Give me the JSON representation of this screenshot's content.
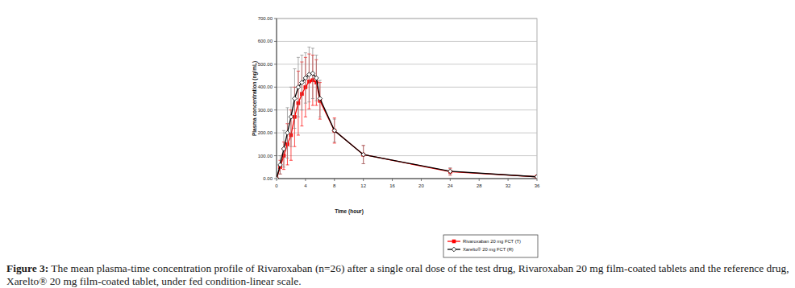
{
  "chart_data": {
    "type": "line",
    "y_label": "Plasma concentration (ng/mL)",
    "x_label": "Time (hour)",
    "x": [
      0,
      0.5,
      1,
      1.5,
      2,
      2.5,
      3,
      3.5,
      4,
      4.5,
      5,
      5.5,
      6,
      8,
      12,
      24,
      36
    ],
    "series": [
      {
        "name": "Rivaroxaban 20 mg FCT (T)",
        "color": "#ff0000",
        "marker": "square",
        "values": [
          0,
          50,
          100,
          150,
          190,
          270,
          330,
          370,
          400,
          425,
          430,
          420,
          340,
          210,
          105,
          30,
          8
        ],
        "errors": [
          0,
          30,
          60,
          90,
          110,
          130,
          140,
          140,
          130,
          120,
          110,
          100,
          80,
          55,
          40,
          15,
          5
        ]
      },
      {
        "name": "Xarelto® 20 mg FCT (R)",
        "color": "#000000",
        "marker": "diamond",
        "values": [
          0,
          60,
          130,
          200,
          270,
          350,
          400,
          420,
          440,
          455,
          460,
          440,
          350,
          210,
          105,
          32,
          8
        ],
        "errors": [
          0,
          40,
          80,
          110,
          130,
          130,
          130,
          120,
          110,
          120,
          110,
          100,
          80,
          50,
          40,
          15,
          5
        ]
      }
    ],
    "xlim": [
      0,
      36
    ],
    "xticks": [
      0,
      4,
      8,
      12,
      16,
      20,
      24,
      28,
      32,
      36
    ],
    "ylim": [
      0,
      700
    ],
    "yticks": [
      {
        "value": 0,
        "label": "0.00"
      },
      {
        "value": 100,
        "label": "100.00"
      },
      {
        "value": 200,
        "label": "200.00"
      },
      {
        "value": 300,
        "label": "300.00"
      },
      {
        "value": 400,
        "label": "400.00"
      },
      {
        "value": 500,
        "label": "500.00"
      },
      {
        "value": 600,
        "label": "600.00"
      },
      {
        "value": 700,
        "label": "700.00"
      }
    ],
    "grid": true,
    "legend": "bottom-right"
  },
  "caption": {
    "label": "Figure 3:",
    "text": "The mean plasma-time concentration profile of Rivaroxaban (n=26) after a single oral dose of the test drug, Rivaroxaban 20 mg film-coated tablets and the reference drug, Xarelto® 20 mg film-coated tablet, under fed condition-linear scale."
  }
}
